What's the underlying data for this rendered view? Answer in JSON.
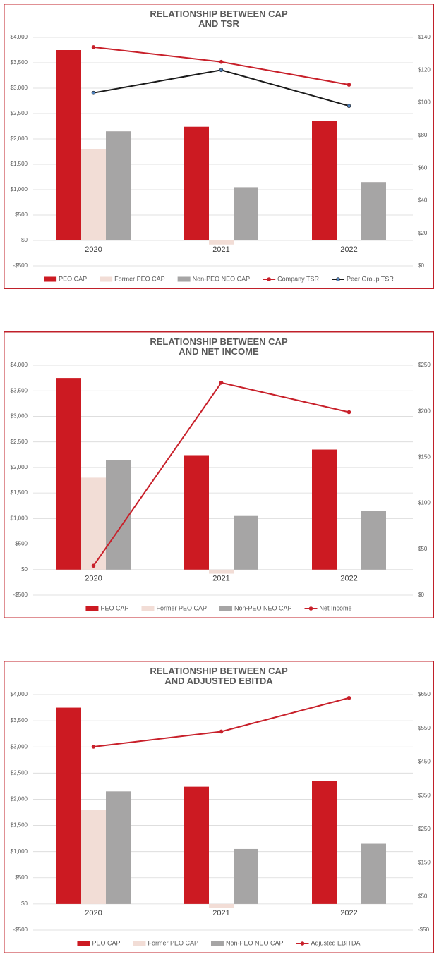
{
  "chart_data": [
    {
      "type": "combo",
      "title": "RELATIONSHIP BETWEEN CAP AND TSR",
      "categories": [
        "2020",
        "2021",
        "2022"
      ],
      "series": [
        {
          "name": "PEO CAP",
          "type": "bar",
          "color": "#cc1a22",
          "values": [
            3750,
            2240,
            2350
          ]
        },
        {
          "name": "Former PEO CAP",
          "type": "bar",
          "color": "#f2ddd6",
          "values": [
            1800,
            -80,
            null
          ]
        },
        {
          "name": "Non-PEO NEO CAP",
          "type": "bar",
          "color": "#a6a5a5",
          "values": [
            2150,
            1050,
            1150
          ]
        },
        {
          "name": "Company TSR",
          "type": "line",
          "axis": "y2",
          "color": "#c8202a",
          "marker_color": "#c8202a",
          "values": [
            134,
            125,
            111
          ]
        },
        {
          "name": "Peer Group TSR",
          "type": "line",
          "axis": "y2",
          "color": "#1a1a1a",
          "marker_color": "#4f81bd",
          "values": [
            106,
            120,
            98
          ]
        }
      ],
      "ylim": [
        -500,
        4000
      ],
      "yticks": [
        {
          "value": -500,
          "label": "-$500"
        },
        {
          "value": 0,
          "label": "$0"
        },
        {
          "value": 500,
          "label": "$500"
        },
        {
          "value": 1000,
          "label": "$1,000"
        },
        {
          "value": 1500,
          "label": "$1,500"
        },
        {
          "value": 2000,
          "label": "$2,000"
        },
        {
          "value": 2500,
          "label": "$2,500"
        },
        {
          "value": 3000,
          "label": "$3,000"
        },
        {
          "value": 3500,
          "label": "$3,500"
        },
        {
          "value": 4000,
          "label": "$4,000"
        }
      ],
      "y2lim": [
        0,
        140
      ],
      "y2ticks": [
        {
          "value": 0,
          "label": "$0"
        },
        {
          "value": 20,
          "label": "$20"
        },
        {
          "value": 40,
          "label": "$40"
        },
        {
          "value": 60,
          "label": "$60"
        },
        {
          "value": 80,
          "label": "$80"
        },
        {
          "value": 100,
          "label": "$100"
        },
        {
          "value": 120,
          "label": "$120"
        },
        {
          "value": 140,
          "label": "$140"
        }
      ],
      "grid": true,
      "legend": "bottom"
    },
    {
      "type": "combo",
      "title": "RELATIONSHIP BETWEEN CAP AND NET INCOME",
      "categories": [
        "2020",
        "2021",
        "2022"
      ],
      "series": [
        {
          "name": "PEO CAP",
          "type": "bar",
          "color": "#cc1a22",
          "values": [
            3750,
            2240,
            2350
          ]
        },
        {
          "name": "Former PEO CAP",
          "type": "bar",
          "color": "#f2ddd6",
          "values": [
            1800,
            -80,
            null
          ]
        },
        {
          "name": "Non-PEO NEO CAP",
          "type": "bar",
          "color": "#a6a5a5",
          "values": [
            2150,
            1050,
            1150
          ]
        },
        {
          "name": "Net Income",
          "type": "line",
          "axis": "y2",
          "color": "#c8202a",
          "marker_color": "#c8202a",
          "values": [
            32,
            231,
            199
          ]
        }
      ],
      "ylim": [
        -500,
        4000
      ],
      "yticks": [
        {
          "value": -500,
          "label": "-$500"
        },
        {
          "value": 0,
          "label": "$0"
        },
        {
          "value": 500,
          "label": "$500"
        },
        {
          "value": 1000,
          "label": "$1,000"
        },
        {
          "value": 1500,
          "label": "$1,500"
        },
        {
          "value": 2000,
          "label": "$2,000"
        },
        {
          "value": 2500,
          "label": "$2,500"
        },
        {
          "value": 3000,
          "label": "$3,000"
        },
        {
          "value": 3500,
          "label": "$3,500"
        },
        {
          "value": 4000,
          "label": "$4,000"
        }
      ],
      "y2lim": [
        0,
        250
      ],
      "y2ticks": [
        {
          "value": 0,
          "label": "$0"
        },
        {
          "value": 50,
          "label": "$50"
        },
        {
          "value": 100,
          "label": "$100"
        },
        {
          "value": 150,
          "label": "$150"
        },
        {
          "value": 200,
          "label": "$200"
        },
        {
          "value": 250,
          "label": "$250"
        }
      ],
      "grid": true,
      "legend": "bottom"
    },
    {
      "type": "combo",
      "title": "RELATIONSHIP BETWEEN CAP AND ADJUSTED EBITDA",
      "categories": [
        "2020",
        "2021",
        "2022"
      ],
      "series": [
        {
          "name": "PEO CAP",
          "type": "bar",
          "color": "#cc1a22",
          "values": [
            3750,
            2240,
            2350
          ]
        },
        {
          "name": "Former PEO CAP",
          "type": "bar",
          "color": "#f2ddd6",
          "values": [
            1800,
            -80,
            null
          ]
        },
        {
          "name": "Non-PEO NEO CAP",
          "type": "bar",
          "color": "#a6a5a5",
          "values": [
            2150,
            1050,
            1150
          ]
        },
        {
          "name": "Adjusted EBITDA",
          "type": "line",
          "axis": "y2",
          "color": "#c8202a",
          "marker_color": "#c8202a",
          "values": [
            495,
            540,
            640
          ]
        }
      ],
      "ylim": [
        -500,
        4000
      ],
      "yticks": [
        {
          "value": -500,
          "label": "-$500"
        },
        {
          "value": 0,
          "label": "$0"
        },
        {
          "value": 500,
          "label": "$500"
        },
        {
          "value": 1000,
          "label": "$1,000"
        },
        {
          "value": 1500,
          "label": "$1,500"
        },
        {
          "value": 2000,
          "label": "$2,000"
        },
        {
          "value": 2500,
          "label": "$2,500"
        },
        {
          "value": 3000,
          "label": "$3,000"
        },
        {
          "value": 3500,
          "label": "$3,500"
        },
        {
          "value": 4000,
          "label": "$4,000"
        }
      ],
      "y2lim": [
        -50,
        650
      ],
      "y2ticks": [
        {
          "value": -50,
          "label": "-$50"
        },
        {
          "value": 50,
          "label": "$50"
        },
        {
          "value": 150,
          "label": "$150"
        },
        {
          "value": 250,
          "label": "$250"
        },
        {
          "value": 350,
          "label": "$350"
        },
        {
          "value": 450,
          "label": "$450"
        },
        {
          "value": 550,
          "label": "$550"
        },
        {
          "value": 650,
          "label": "$650"
        }
      ],
      "grid": true,
      "legend": "bottom"
    }
  ]
}
